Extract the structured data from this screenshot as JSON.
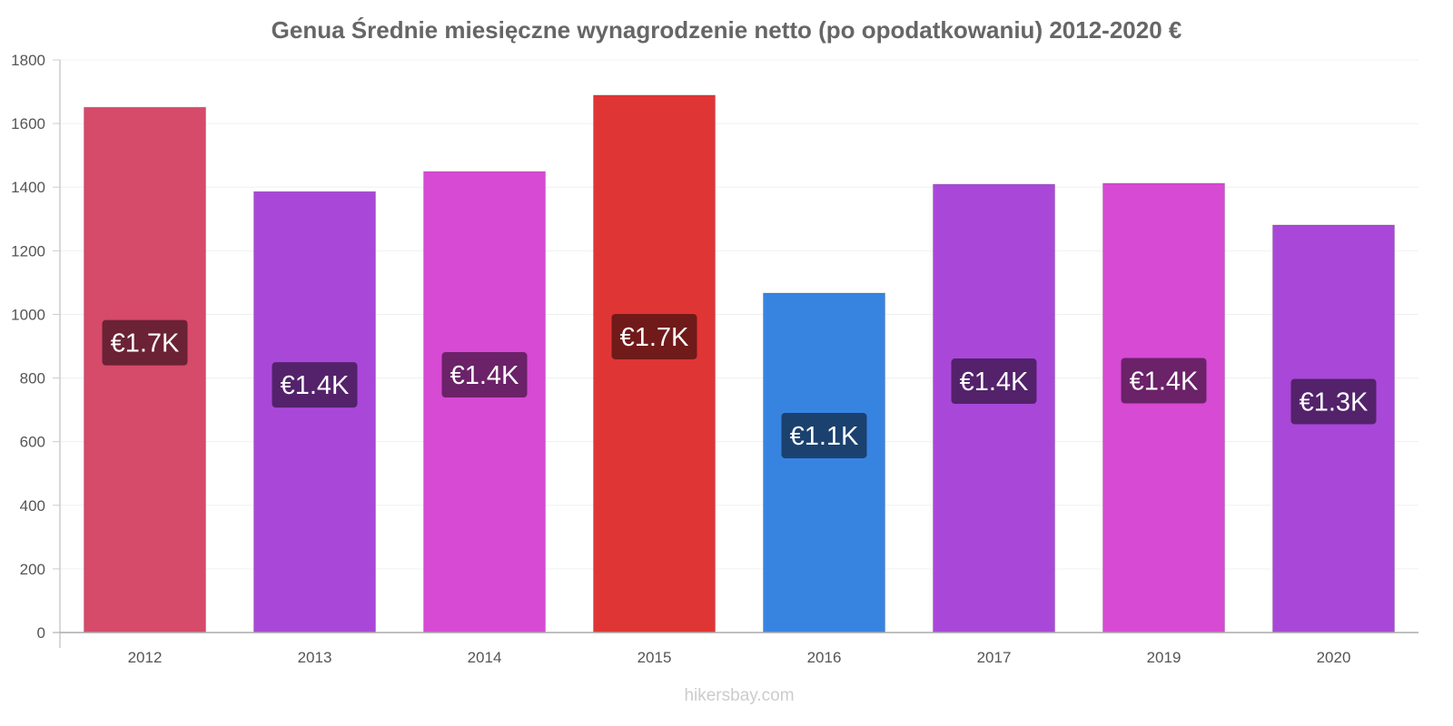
{
  "chart_data": {
    "type": "bar",
    "title": "Genua Średnie miesięczne wynagrodzenie netto (po opodatkowaniu) 2012-2020 €",
    "xlabel": "",
    "ylabel": "",
    "ylim": [
      0,
      1800
    ],
    "yticks": [
      0,
      200,
      400,
      600,
      800,
      1000,
      1200,
      1400,
      1600,
      1800
    ],
    "categories": [
      "2012",
      "2013",
      "2014",
      "2015",
      "2016",
      "2017",
      "2019",
      "2020"
    ],
    "values": [
      1651,
      1386,
      1449,
      1689,
      1067,
      1409,
      1412,
      1281
    ],
    "data_labels": [
      "€1.7K",
      "€1.4K",
      "€1.4K",
      "€1.7K",
      "€1.1K",
      "€1.4K",
      "€1.4K",
      "€1.3K"
    ],
    "colors": [
      "#d64a6a",
      "#a948d8",
      "#d64ad4",
      "#e03535",
      "#3784e0",
      "#a948d8",
      "#d64ad4",
      "#a948d8"
    ],
    "label_colors": [
      "#6b2235",
      "#53226b",
      "#6b2268",
      "#701a1a",
      "#1b416f",
      "#53226b",
      "#6b2268",
      "#53226b"
    ],
    "grid": true
  },
  "watermark": "hikersbay.com"
}
